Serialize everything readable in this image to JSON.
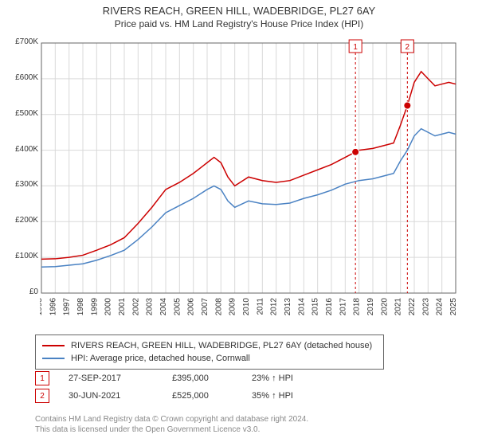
{
  "title": "RIVERS REACH, GREEN HILL, WADEBRIDGE, PL27 6AY",
  "subtitle": "Price paid vs. HM Land Registry's House Price Index (HPI)",
  "chart": {
    "type": "line",
    "background_color": "#ffffff",
    "plot_background": "#ffffff",
    "grid_color": "#d9d9d9",
    "axis_color": "#666666",
    "text_color": "#333333",
    "tick_fontsize": 10,
    "ylim": [
      0,
      700000
    ],
    "ytick_step": 100000,
    "yticks": [
      "£0",
      "£100K",
      "£200K",
      "£300K",
      "£400K",
      "£500K",
      "£600K",
      "£700K"
    ],
    "xlim": [
      1995,
      2025
    ],
    "xticks": [
      "1995",
      "1996",
      "1997",
      "1998",
      "1999",
      "2000",
      "2001",
      "2002",
      "2003",
      "2004",
      "2005",
      "2006",
      "2007",
      "2008",
      "2009",
      "2010",
      "2011",
      "2012",
      "2013",
      "2014",
      "2015",
      "2016",
      "2017",
      "2018",
      "2019",
      "2020",
      "2021",
      "2022",
      "2023",
      "2024",
      "2025"
    ],
    "vertical_markers": [
      {
        "year": 2017.74,
        "label": "1",
        "color": "#cc0000"
      },
      {
        "year": 2021.5,
        "label": "2",
        "color": "#cc0000"
      }
    ],
    "series": [
      {
        "name": "property",
        "label": "RIVERS REACH, GREEN HILL, WADEBRIDGE, PL27 6AY (detached house)",
        "color": "#cc0000",
        "line_width": 1.5,
        "data": [
          [
            1995,
            95000
          ],
          [
            1996,
            96000
          ],
          [
            1997,
            100000
          ],
          [
            1998,
            106000
          ],
          [
            1999,
            120000
          ],
          [
            2000,
            135000
          ],
          [
            2001,
            155000
          ],
          [
            2002,
            195000
          ],
          [
            2003,
            240000
          ],
          [
            2004,
            290000
          ],
          [
            2005,
            310000
          ],
          [
            2006,
            335000
          ],
          [
            2007,
            365000
          ],
          [
            2007.5,
            380000
          ],
          [
            2008,
            365000
          ],
          [
            2008.5,
            325000
          ],
          [
            2009,
            300000
          ],
          [
            2010,
            325000
          ],
          [
            2011,
            315000
          ],
          [
            2012,
            310000
          ],
          [
            2013,
            315000
          ],
          [
            2014,
            330000
          ],
          [
            2015,
            345000
          ],
          [
            2016,
            360000
          ],
          [
            2017,
            380000
          ],
          [
            2017.74,
            395000
          ],
          [
            2018,
            400000
          ],
          [
            2019,
            405000
          ],
          [
            2020,
            415000
          ],
          [
            2020.5,
            420000
          ],
          [
            2021,
            470000
          ],
          [
            2021.5,
            525000
          ],
          [
            2022,
            590000
          ],
          [
            2022.5,
            620000
          ],
          [
            2023,
            600000
          ],
          [
            2023.5,
            580000
          ],
          [
            2024,
            585000
          ],
          [
            2024.5,
            590000
          ],
          [
            2025,
            585000
          ]
        ],
        "sale_points": [
          {
            "year": 2017.74,
            "price": 395000
          },
          {
            "year": 2021.5,
            "price": 525000
          }
        ]
      },
      {
        "name": "hpi",
        "label": "HPI: Average price, detached house, Cornwall",
        "color": "#4a82c3",
        "line_width": 1.5,
        "data": [
          [
            1995,
            73000
          ],
          [
            1996,
            74000
          ],
          [
            1997,
            78000
          ],
          [
            1998,
            82000
          ],
          [
            1999,
            92000
          ],
          [
            2000,
            105000
          ],
          [
            2001,
            120000
          ],
          [
            2002,
            150000
          ],
          [
            2003,
            185000
          ],
          [
            2004,
            225000
          ],
          [
            2005,
            245000
          ],
          [
            2006,
            265000
          ],
          [
            2007,
            290000
          ],
          [
            2007.5,
            300000
          ],
          [
            2008,
            290000
          ],
          [
            2008.5,
            258000
          ],
          [
            2009,
            240000
          ],
          [
            2010,
            258000
          ],
          [
            2011,
            250000
          ],
          [
            2012,
            248000
          ],
          [
            2013,
            252000
          ],
          [
            2014,
            265000
          ],
          [
            2015,
            275000
          ],
          [
            2016,
            288000
          ],
          [
            2017,
            305000
          ],
          [
            2018,
            315000
          ],
          [
            2019,
            320000
          ],
          [
            2020,
            330000
          ],
          [
            2020.5,
            335000
          ],
          [
            2021,
            370000
          ],
          [
            2021.5,
            400000
          ],
          [
            2022,
            440000
          ],
          [
            2022.5,
            460000
          ],
          [
            2023,
            450000
          ],
          [
            2023.5,
            440000
          ],
          [
            2024,
            445000
          ],
          [
            2024.5,
            450000
          ],
          [
            2025,
            445000
          ]
        ]
      }
    ]
  },
  "legend": [
    {
      "color": "#cc0000",
      "label": "RIVERS REACH, GREEN HILL, WADEBRIDGE, PL27 6AY (detached house)"
    },
    {
      "color": "#4a82c3",
      "label": "HPI: Average price, detached house, Cornwall"
    }
  ],
  "sales": [
    {
      "marker": "1",
      "marker_color": "#cc0000",
      "date": "27-SEP-2017",
      "price": "£395,000",
      "delta": "23% ↑ HPI"
    },
    {
      "marker": "2",
      "marker_color": "#cc0000",
      "date": "30-JUN-2021",
      "price": "£525,000",
      "delta": "35% ↑ HPI"
    }
  ],
  "footer_line1": "Contains HM Land Registry data © Crown copyright and database right 2024.",
  "footer_line2": "This data is licensed under the Open Government Licence v3.0."
}
